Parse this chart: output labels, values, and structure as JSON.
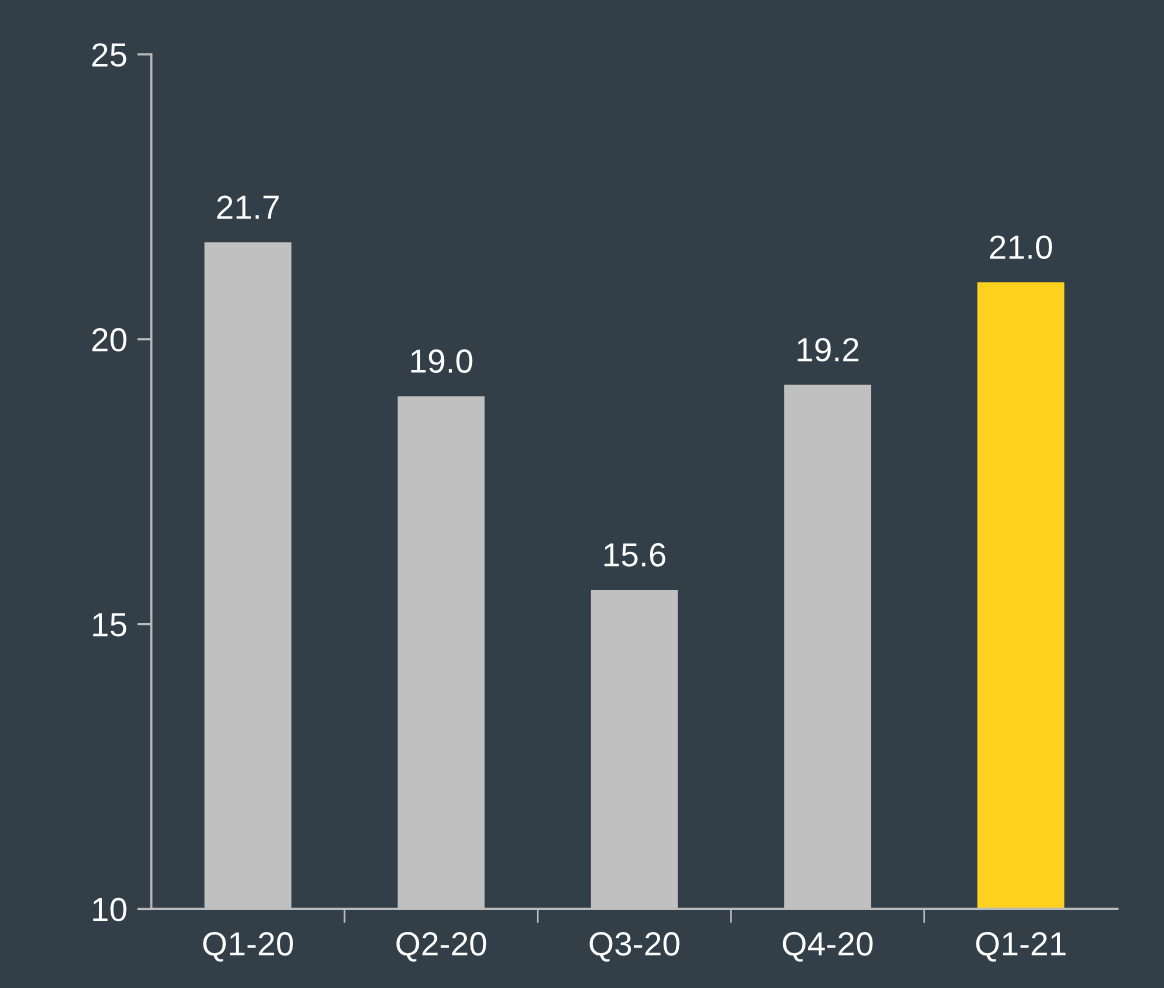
{
  "chart_data": {
    "type": "bar",
    "categories": [
      "Q1-20",
      "Q2-20",
      "Q3-20",
      "Q4-20",
      "Q1-21"
    ],
    "values": [
      21.7,
      19.0,
      15.6,
      19.2,
      21.0
    ],
    "value_labels": [
      "21.7",
      "19.0",
      "15.6",
      "19.2",
      "21.0"
    ],
    "colors": [
      "#c0c0c0",
      "#c0c0c0",
      "#c0c0c0",
      "#c0c0c0",
      "#ffd21f"
    ],
    "ylim": [
      10,
      25
    ],
    "yticks": [
      10,
      15,
      20,
      25
    ],
    "grid": false,
    "legend": false
  }
}
